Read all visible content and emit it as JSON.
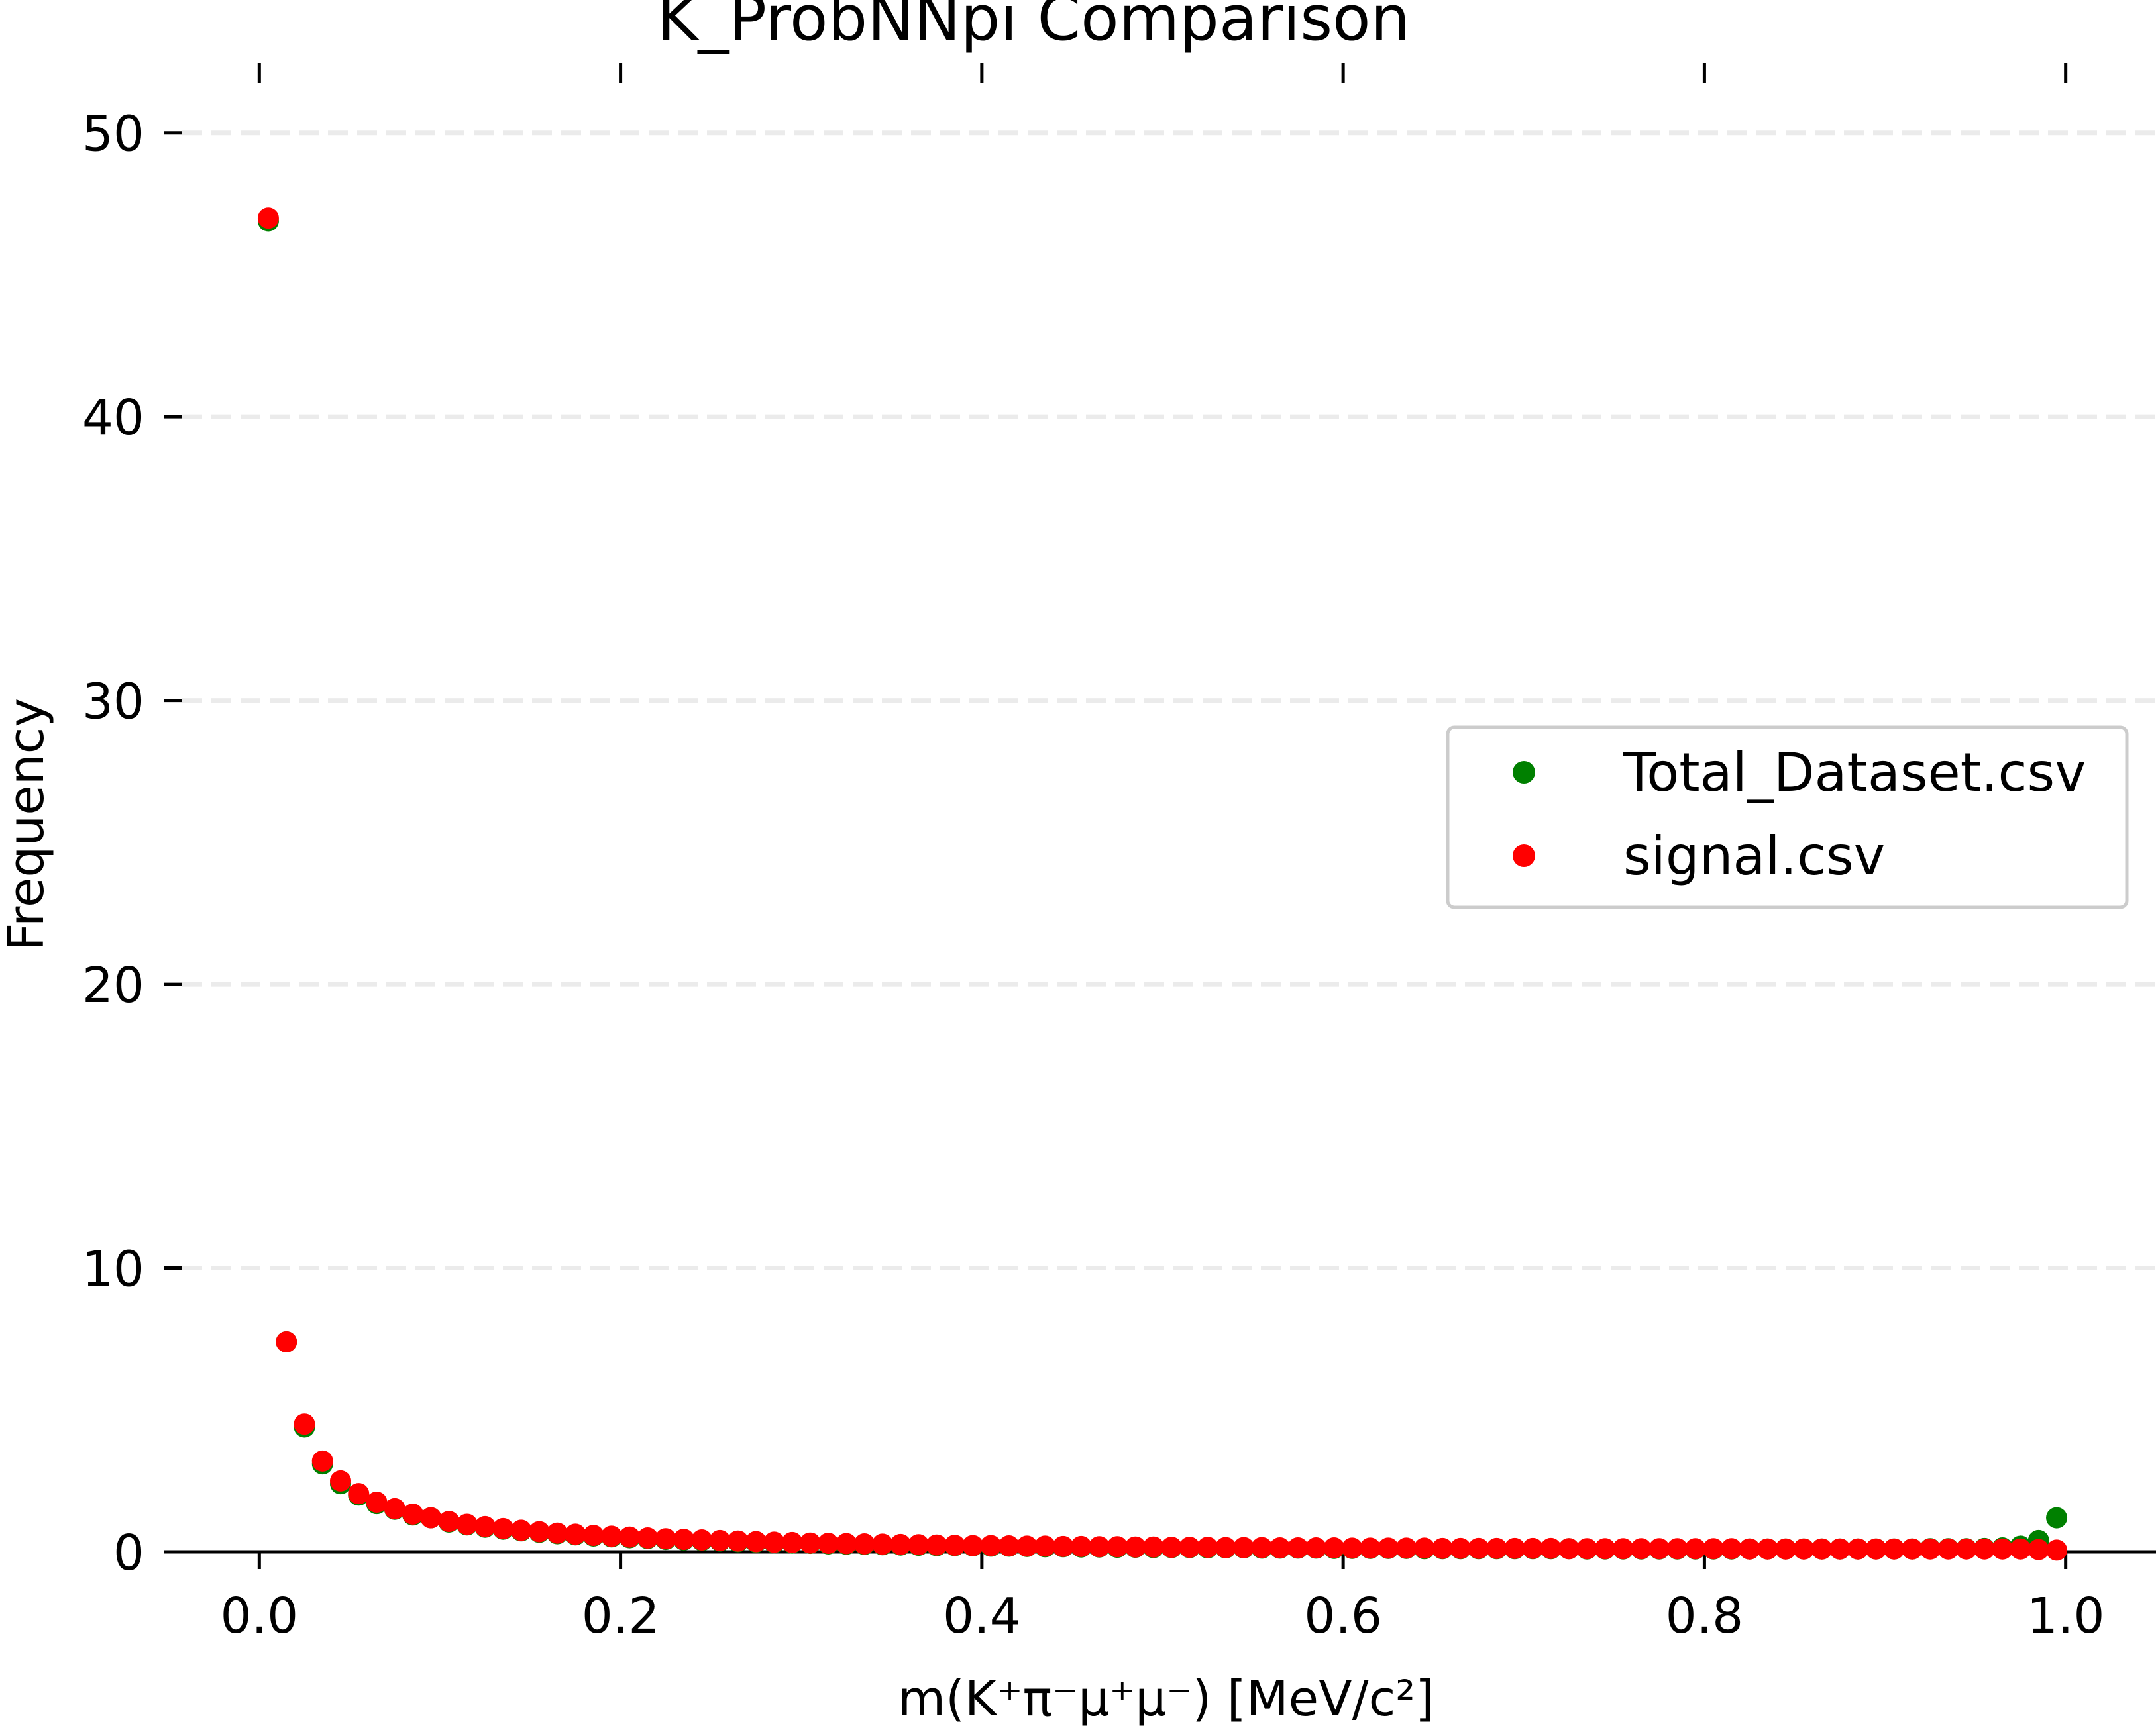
{
  "chart_data": {
    "type": "scatter",
    "title": "K_ProbNNpi Comparison",
    "xlabel": "m(K⁺π⁻μ⁺μ⁻) [MeV/c²]",
    "ylabel": "Frequency",
    "xlim": [
      -0.05,
      1.05
    ],
    "ylim": [
      0,
      52
    ],
    "xticks": [
      0.0,
      0.2,
      0.4,
      0.6,
      0.8,
      1.0
    ],
    "xtick_labels": [
      "0.0",
      "0.2",
      "0.4",
      "0.6",
      "0.8",
      "1.0"
    ],
    "yticks": [
      0,
      10,
      20,
      30,
      40,
      50
    ],
    "ytick_labels": [
      "0",
      "10",
      "20",
      "30",
      "40",
      "50"
    ],
    "grid": "y dashed",
    "legend_position": "center-right",
    "colors": {
      "Total_Dataset.csv": "#008000",
      "signal.csv": "#ff0000"
    },
    "series": [
      {
        "name": "Total_Dataset.csv",
        "color": "#008000",
        "x": [
          0.005,
          0.015,
          0.025,
          0.035,
          0.045,
          0.055,
          0.065,
          0.075,
          0.085,
          0.095,
          0.105,
          0.115,
          0.125,
          0.135,
          0.145,
          0.155,
          0.165,
          0.175,
          0.185,
          0.195,
          0.205,
          0.215,
          0.225,
          0.235,
          0.245,
          0.255,
          0.265,
          0.275,
          0.285,
          0.295,
          0.305,
          0.315,
          0.325,
          0.335,
          0.345,
          0.355,
          0.365,
          0.375,
          0.385,
          0.395,
          0.405,
          0.415,
          0.425,
          0.435,
          0.445,
          0.455,
          0.465,
          0.475,
          0.485,
          0.495,
          0.505,
          0.515,
          0.525,
          0.535,
          0.545,
          0.555,
          0.565,
          0.575,
          0.585,
          0.595,
          0.605,
          0.615,
          0.625,
          0.635,
          0.645,
          0.655,
          0.665,
          0.675,
          0.685,
          0.695,
          0.705,
          0.715,
          0.725,
          0.735,
          0.745,
          0.755,
          0.765,
          0.775,
          0.785,
          0.795,
          0.805,
          0.815,
          0.825,
          0.835,
          0.845,
          0.855,
          0.865,
          0.875,
          0.885,
          0.895,
          0.905,
          0.915,
          0.925,
          0.935,
          0.945,
          0.955,
          0.965,
          0.975,
          0.985,
          0.995
        ],
        "y": [
          46.9,
          7.4,
          4.4,
          3.1,
          2.4,
          2.0,
          1.7,
          1.5,
          1.3,
          1.2,
          1.05,
          0.95,
          0.87,
          0.8,
          0.74,
          0.69,
          0.64,
          0.6,
          0.56,
          0.53,
          0.5,
          0.47,
          0.44,
          0.42,
          0.4,
          0.38,
          0.36,
          0.34,
          0.32,
          0.31,
          0.3,
          0.28,
          0.27,
          0.26,
          0.25,
          0.24,
          0.23,
          0.22,
          0.22,
          0.21,
          0.2,
          0.2,
          0.19,
          0.18,
          0.18,
          0.17,
          0.17,
          0.16,
          0.16,
          0.15,
          0.15,
          0.15,
          0.14,
          0.14,
          0.14,
          0.13,
          0.13,
          0.13,
          0.13,
          0.12,
          0.12,
          0.12,
          0.12,
          0.12,
          0.11,
          0.11,
          0.11,
          0.11,
          0.11,
          0.11,
          0.11,
          0.11,
          0.11,
          0.1,
          0.1,
          0.1,
          0.1,
          0.1,
          0.1,
          0.1,
          0.1,
          0.1,
          0.1,
          0.1,
          0.1,
          0.1,
          0.1,
          0.1,
          0.1,
          0.1,
          0.1,
          0.1,
          0.11,
          0.11,
          0.11,
          0.12,
          0.14,
          0.2,
          0.4,
          1.2
        ]
      },
      {
        "name": "signal.csv",
        "color": "#ff0000",
        "x": [
          0.005,
          0.015,
          0.025,
          0.035,
          0.045,
          0.055,
          0.065,
          0.075,
          0.085,
          0.095,
          0.105,
          0.115,
          0.125,
          0.135,
          0.145,
          0.155,
          0.165,
          0.175,
          0.185,
          0.195,
          0.205,
          0.215,
          0.225,
          0.235,
          0.245,
          0.255,
          0.265,
          0.275,
          0.285,
          0.295,
          0.305,
          0.315,
          0.325,
          0.335,
          0.345,
          0.355,
          0.365,
          0.375,
          0.385,
          0.395,
          0.405,
          0.415,
          0.425,
          0.435,
          0.445,
          0.455,
          0.465,
          0.475,
          0.485,
          0.495,
          0.505,
          0.515,
          0.525,
          0.535,
          0.545,
          0.555,
          0.565,
          0.575,
          0.585,
          0.595,
          0.605,
          0.615,
          0.625,
          0.635,
          0.645,
          0.655,
          0.665,
          0.675,
          0.685,
          0.695,
          0.705,
          0.715,
          0.725,
          0.735,
          0.745,
          0.755,
          0.765,
          0.775,
          0.785,
          0.795,
          0.805,
          0.815,
          0.825,
          0.835,
          0.845,
          0.855,
          0.865,
          0.875,
          0.885,
          0.895,
          0.905,
          0.915,
          0.925,
          0.935,
          0.945,
          0.955,
          0.965,
          0.975,
          0.985,
          0.995
        ],
        "y": [
          47.0,
          7.4,
          4.5,
          3.2,
          2.5,
          2.05,
          1.75,
          1.52,
          1.33,
          1.2,
          1.07,
          0.97,
          0.89,
          0.82,
          0.76,
          0.71,
          0.66,
          0.62,
          0.58,
          0.55,
          0.52,
          0.49,
          0.46,
          0.44,
          0.42,
          0.4,
          0.38,
          0.36,
          0.34,
          0.33,
          0.31,
          0.3,
          0.29,
          0.28,
          0.27,
          0.26,
          0.25,
          0.24,
          0.23,
          0.22,
          0.22,
          0.21,
          0.2,
          0.2,
          0.19,
          0.19,
          0.18,
          0.18,
          0.17,
          0.17,
          0.16,
          0.16,
          0.16,
          0.15,
          0.15,
          0.15,
          0.14,
          0.14,
          0.14,
          0.14,
          0.13,
          0.13,
          0.13,
          0.13,
          0.13,
          0.12,
          0.12,
          0.12,
          0.12,
          0.12,
          0.12,
          0.12,
          0.11,
          0.11,
          0.11,
          0.11,
          0.11,
          0.11,
          0.11,
          0.11,
          0.11,
          0.11,
          0.1,
          0.1,
          0.1,
          0.1,
          0.1,
          0.1,
          0.1,
          0.1,
          0.1,
          0.1,
          0.1,
          0.1,
          0.1,
          0.1,
          0.1,
          0.1,
          0.08,
          0.06
        ]
      }
    ]
  }
}
